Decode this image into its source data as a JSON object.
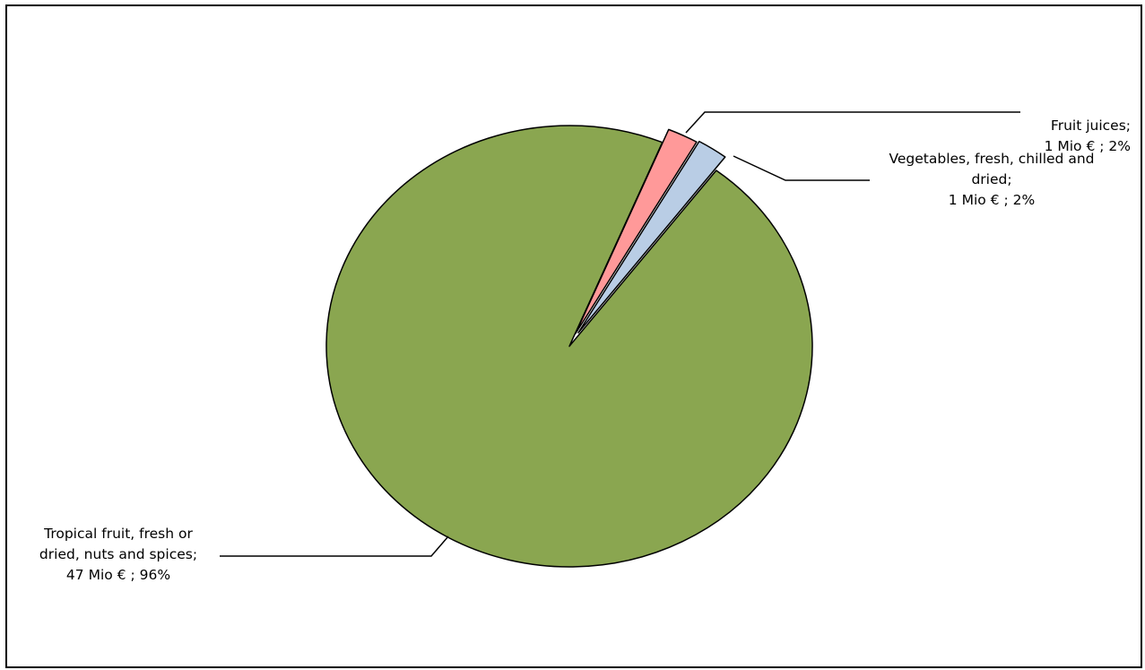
{
  "chart_data": {
    "type": "pie",
    "series": [
      {
        "slices": [
          {
            "category": "Fruit juices",
            "value_mio_eur": 1,
            "percent": 2,
            "color": "#ff9999",
            "label_lines": [
              "Fruit juices;",
              "1 Mio € ; 2%"
            ]
          },
          {
            "category": "Vegetables, fresh, chilled and dried",
            "value_mio_eur": 1,
            "percent": 2,
            "color": "#b9cde5",
            "label_lines": [
              "Vegetables, fresh, chilled and",
              "dried;",
              "1 Mio € ; 2%"
            ]
          },
          {
            "category": "Tropical fruit, fresh or dried, nuts and spices",
            "value_mio_eur": 47,
            "percent": 96,
            "color": "#8aa650",
            "label_lines": [
              "Tropical fruit, fresh or",
              "dried, nuts and spices;",
              "47 Mio € ; 96%"
            ]
          }
        ]
      }
    ]
  }
}
